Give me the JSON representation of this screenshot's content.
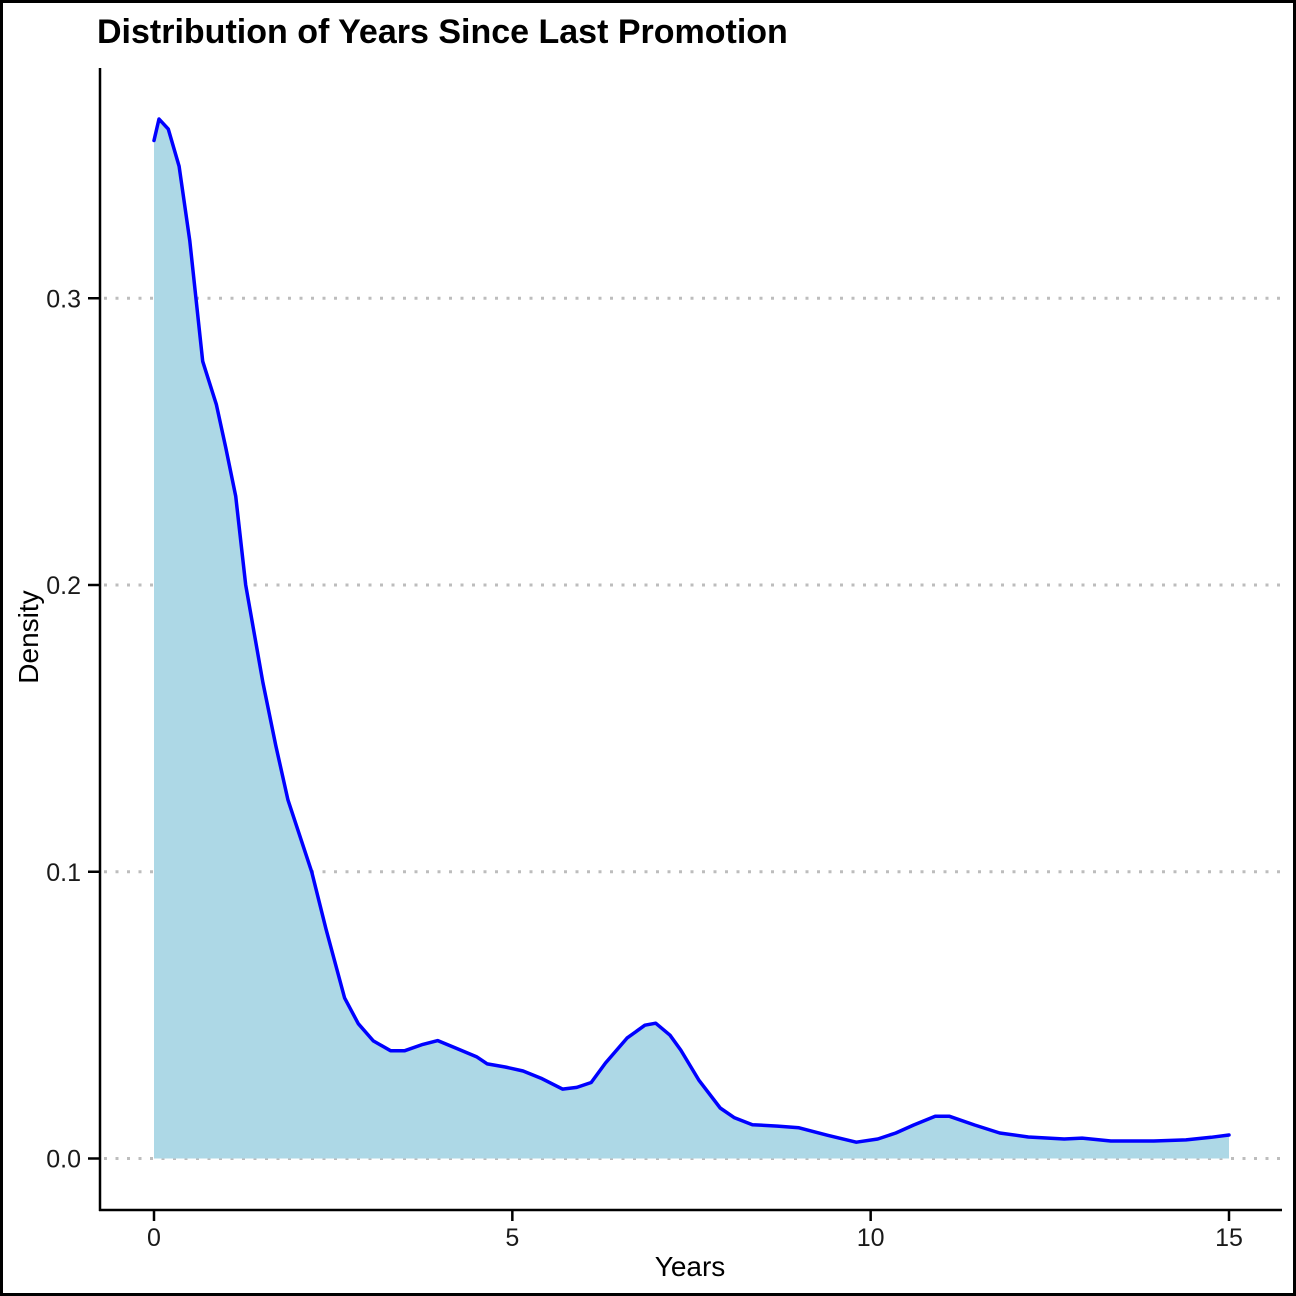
{
  "chart_data": {
    "type": "area",
    "title": "Distribution of Years Since Last Promotion",
    "xlabel": "Years",
    "ylabel": "Density",
    "x_ticks": [
      0,
      5,
      10,
      15
    ],
    "x_tick_labels": [
      "0",
      "5",
      "10",
      "15"
    ],
    "y_ticks": [
      0.0,
      0.1,
      0.2,
      0.3
    ],
    "y_tick_labels": [
      "0.0",
      "0.1",
      "0.2",
      "0.3"
    ],
    "xlim": [
      0,
      15
    ],
    "ylim": [
      0,
      0.3625
    ],
    "grid": "horizontal-dotted",
    "legend": "none",
    "colors": {
      "line": "#0000ff",
      "fill": "#add8e6",
      "grid": "#bdbdbd",
      "axis": "#000000",
      "tick_text": "#1a1a1a"
    },
    "series": [
      {
        "name": "density",
        "x": [
          0,
          0.07,
          0.2,
          0.35,
          0.5,
          0.68,
          0.87,
          1.0,
          1.14,
          1.28,
          1.52,
          1.7,
          1.87,
          2.2,
          2.4,
          2.66,
          2.85,
          3.06,
          3.3,
          3.5,
          3.75,
          3.96,
          4.2,
          4.5,
          4.65,
          4.9,
          5.15,
          5.4,
          5.7,
          5.9,
          6.1,
          6.3,
          6.6,
          6.85,
          7.0,
          7.2,
          7.35,
          7.6,
          7.9,
          8.1,
          8.35,
          8.7,
          9.0,
          9.4,
          9.8,
          10.1,
          10.35,
          10.6,
          10.9,
          11.1,
          11.45,
          11.8,
          12.2,
          12.7,
          12.95,
          13.35,
          13.95,
          14.4,
          14.75,
          15.0
        ],
        "y": [
          0.355,
          0.3625,
          0.359,
          0.346,
          0.32,
          0.278,
          0.263,
          0.248,
          0.231,
          0.2,
          0.166,
          0.144,
          0.125,
          0.1,
          0.08,
          0.056,
          0.047,
          0.041,
          0.0376,
          0.0376,
          0.0398,
          0.0411,
          0.0386,
          0.0355,
          0.033,
          0.0319,
          0.0305,
          0.028,
          0.0242,
          0.0248,
          0.0265,
          0.0333,
          0.042,
          0.0465,
          0.0472,
          0.043,
          0.0378,
          0.0274,
          0.0176,
          0.0142,
          0.0118,
          0.0113,
          0.0107,
          0.0081,
          0.0057,
          0.0068,
          0.0089,
          0.0117,
          0.0147,
          0.0147,
          0.0117,
          0.0089,
          0.0075,
          0.0068,
          0.0071,
          0.0061,
          0.0061,
          0.0065,
          0.0074,
          0.0082
        ]
      }
    ]
  }
}
